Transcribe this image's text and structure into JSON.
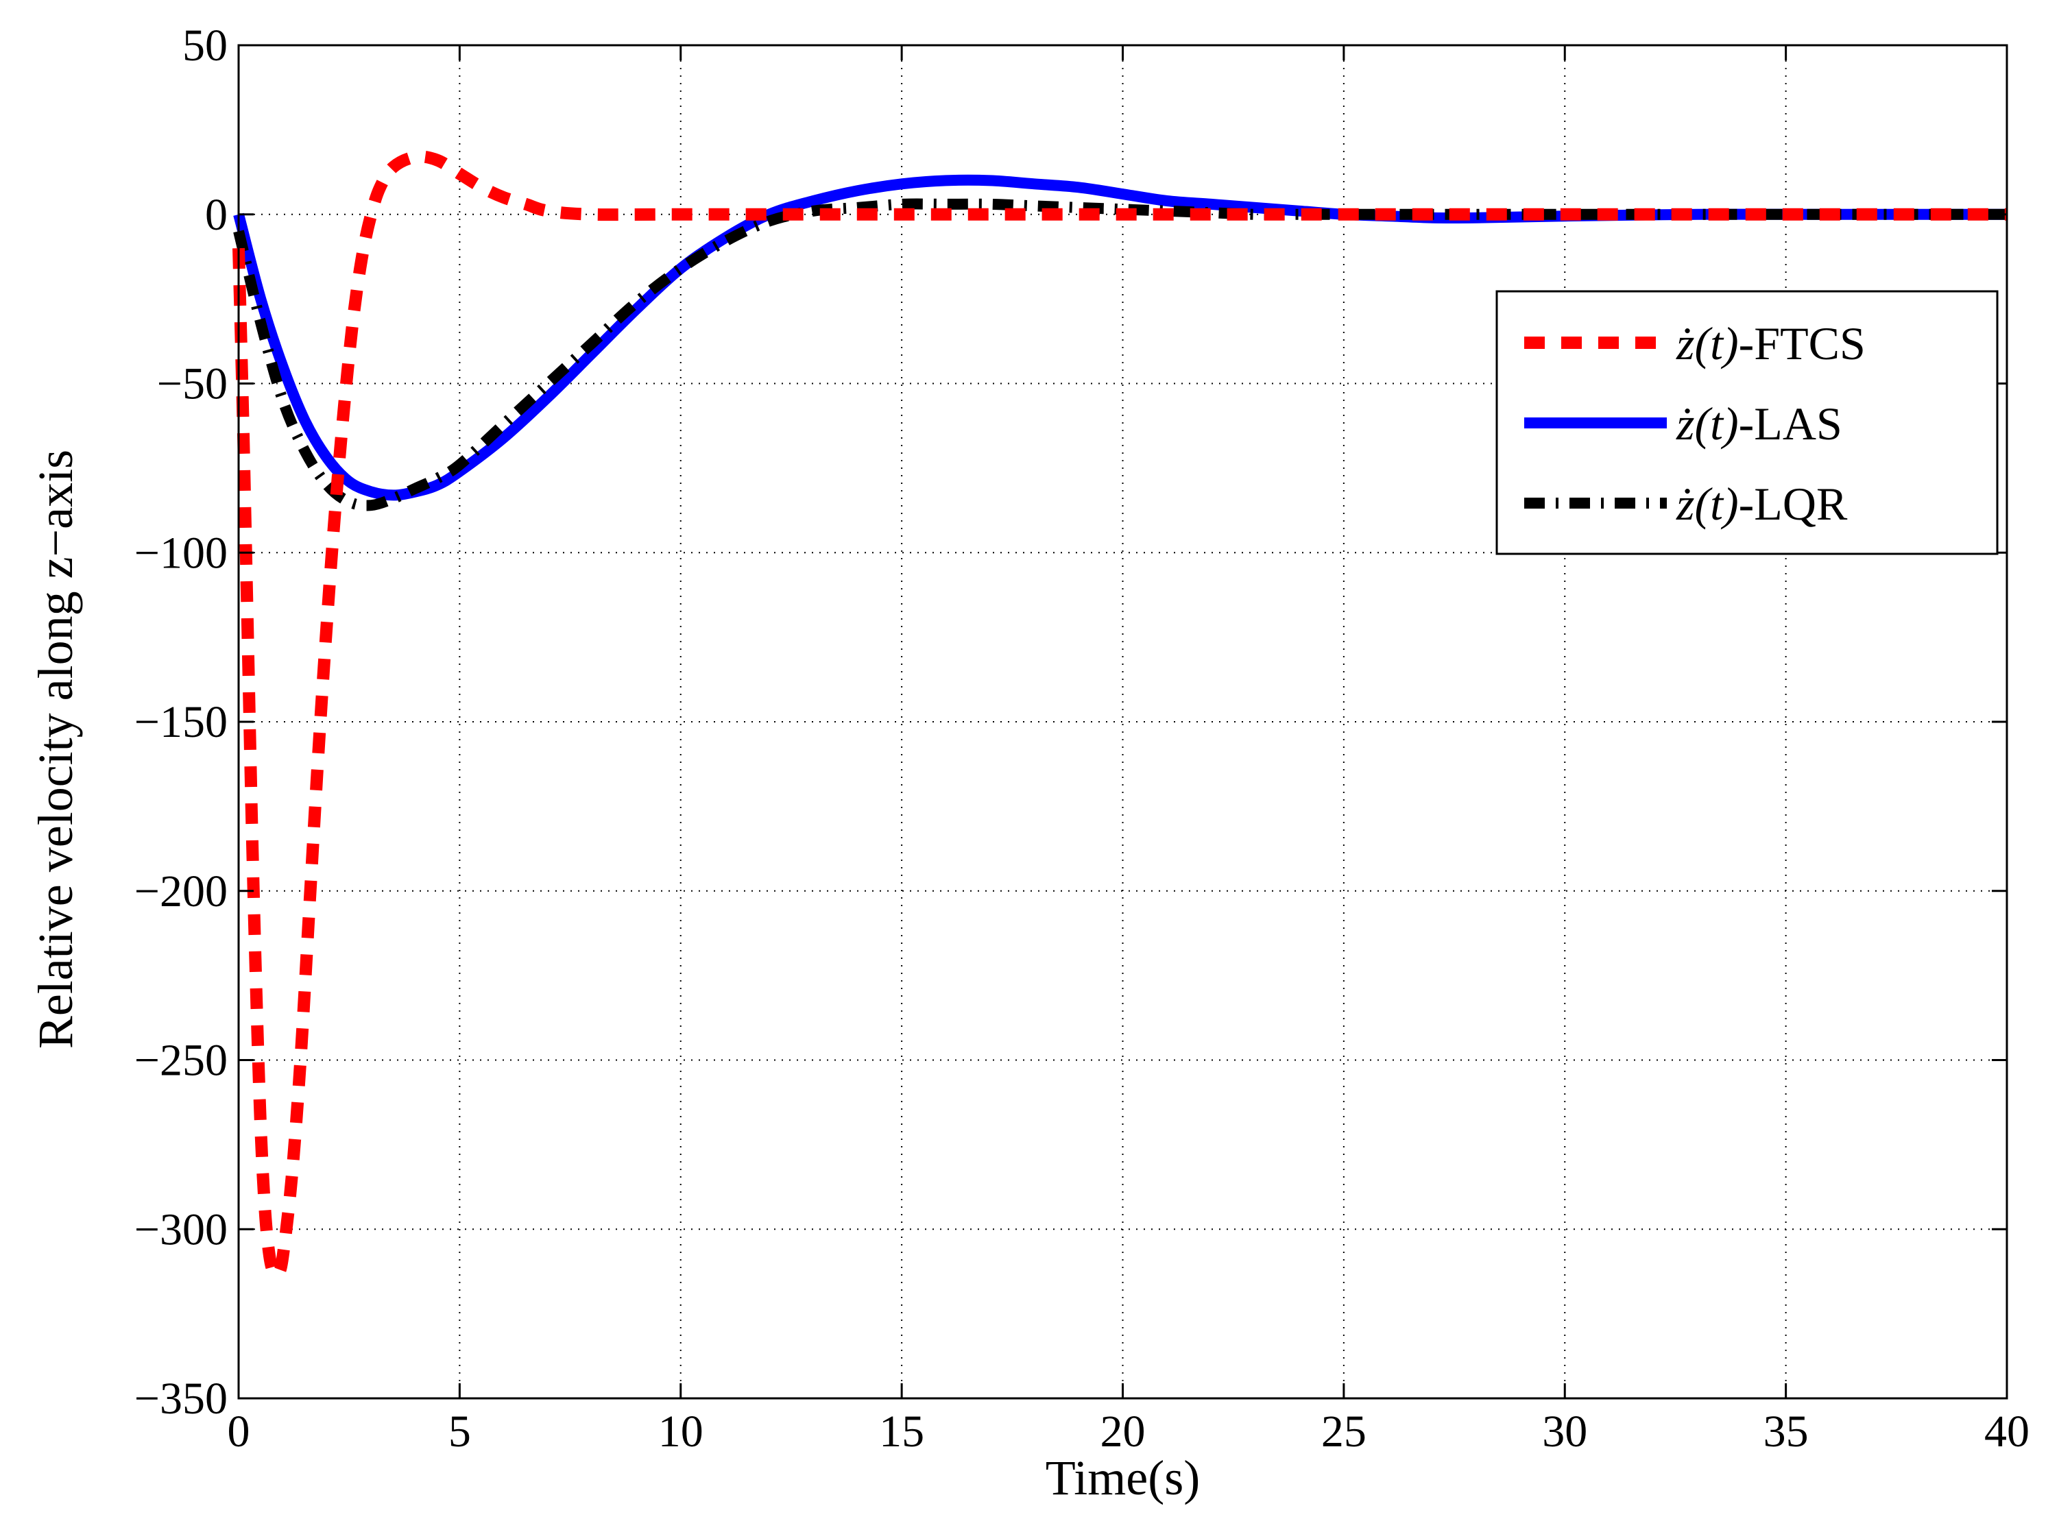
{
  "chart_data": {
    "type": "line",
    "title": "",
    "xlabel": "Time(s)",
    "ylabel": "Relative velocity along z−axis",
    "xlim": [
      0,
      40
    ],
    "ylim": [
      -350,
      50
    ],
    "xticks": [
      0,
      5,
      10,
      15,
      20,
      25,
      30,
      35,
      40
    ],
    "yticks": [
      50,
      0,
      -50,
      -100,
      -150,
      -200,
      -250,
      -300,
      -350
    ],
    "xtick_labels": [
      "0",
      "5",
      "10",
      "15",
      "20",
      "25",
      "30",
      "35",
      "40"
    ],
    "ytick_labels": [
      "50",
      "0",
      "−50",
      "−100",
      "−150",
      "−200",
      "−250",
      "−300",
      "−350"
    ],
    "grid": true,
    "legend_position": "upper-right",
    "series": [
      {
        "name": "ż(t)-FTCS",
        "legend_var": "ż(t)",
        "legend_suffix": "-FTCS",
        "color": "#ff0000",
        "style": "dashed",
        "x": [
          0,
          0.1,
          0.2,
          0.3,
          0.4,
          0.5,
          0.6,
          0.7,
          0.8,
          0.9,
          1.0,
          1.2,
          1.4,
          1.6,
          1.8,
          2.0,
          2.2,
          2.4,
          2.6,
          2.8,
          3.0,
          3.2,
          3.5,
          4.0,
          4.5,
          5.0,
          5.5,
          6.0,
          6.5,
          7.0,
          8.0,
          10.0,
          15.0,
          20.0,
          30.0,
          40.0
        ],
        "y": [
          -10,
          -60,
          -120,
          -180,
          -230,
          -270,
          -295,
          -308,
          -313,
          -313,
          -308,
          -285,
          -250,
          -205,
          -160,
          -120,
          -85,
          -55,
          -30,
          -12,
          0,
          8,
          14,
          17,
          16,
          12,
          8,
          5,
          3,
          1,
          0,
          0,
          0,
          0,
          0,
          0
        ]
      },
      {
        "name": "ż(t)-LAS",
        "legend_var": "ż(t)",
        "legend_suffix": "-LAS",
        "color": "#0000ff",
        "style": "solid",
        "x": [
          0,
          0.5,
          1.0,
          1.5,
          2.0,
          2.5,
          3.0,
          3.5,
          4.0,
          4.5,
          5.0,
          6.0,
          7.0,
          8.0,
          9.0,
          10.0,
          11.0,
          12.0,
          13.0,
          14.0,
          15.0,
          16.0,
          17.0,
          18.0,
          19.0,
          20.0,
          21.0,
          22.0,
          23.0,
          24.0,
          25.0,
          26.0,
          27.0,
          28.0,
          30.0,
          33.0,
          36.0,
          40.0
        ],
        "y": [
          0,
          -25,
          -45,
          -61,
          -72,
          -79,
          -82,
          -83,
          -82,
          -80,
          -76,
          -66,
          -54,
          -41,
          -28,
          -16,
          -7,
          0,
          4,
          7,
          9,
          10,
          10,
          9,
          8,
          6,
          4,
          3,
          2,
          1,
          0,
          -0.5,
          -1,
          -1,
          -0.5,
          0,
          0,
          0
        ]
      },
      {
        "name": "ż(t)-LQR",
        "legend_var": "ż(t)",
        "legend_suffix": "-LQR",
        "color": "#000000",
        "style": "dashdot",
        "x": [
          0,
          0.5,
          1.0,
          1.5,
          2.0,
          2.5,
          3.0,
          3.5,
          4.0,
          4.5,
          5.0,
          6.0,
          7.0,
          8.0,
          9.0,
          10.0,
          11.0,
          12.0,
          13.0,
          14.0,
          15.0,
          16.0,
          17.0,
          18.0,
          19.0,
          20.0,
          21.0,
          22.0,
          23.0,
          24.0,
          25.0,
          27.0,
          30.0,
          33.0,
          36.0,
          40.0
        ],
        "y": [
          -5,
          -32,
          -55,
          -70,
          -80,
          -85,
          -86,
          -84,
          -81,
          -78,
          -74,
          -62,
          -50,
          -38,
          -26,
          -16,
          -8,
          -2,
          1,
          2,
          3,
          3,
          3,
          2.5,
          2,
          1.5,
          1,
          0.5,
          0,
          0,
          0,
          0,
          0,
          0,
          0,
          0
        ]
      }
    ]
  }
}
